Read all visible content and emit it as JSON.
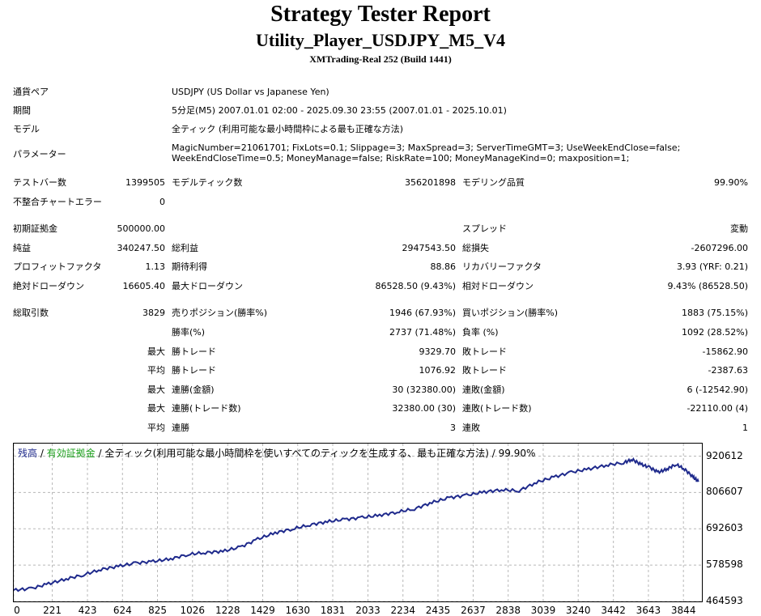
{
  "header": {
    "title": "Strategy Tester Report",
    "strategy": "Utility_Player_USDJPY_M5_V4",
    "server": "XMTrading-Real 252 (Build 1441)"
  },
  "info": {
    "pair_label": "通貨ペア",
    "pair_value": "USDJPY (US Dollar vs Japanese Yen)",
    "period_label": "期間",
    "period_value": "5分足(M5) 2007.01.01 02:00 - 2025.09.30 23:55 (2007.01.01 - 2025.10.01)",
    "model_label": "モデル",
    "model_value": "全ティック (利用可能な最小時間枠による最も正確な方法)",
    "params_label": "パラメーター",
    "params_line1": "MagicNumber=21061701; FixLots=0.1; Slippage=3; MaxSpread=3; ServerTimeGMT=3; UseWeekEndClose=false;",
    "params_line2": "WeekEndCloseTime=0.5; MoneyManage=false; RiskRate=100; MoneyManageKind=0; maxposition=1;"
  },
  "stats": {
    "bars_label": "テストバー数",
    "bars_value": "1399505",
    "ticks_label": "モデルティック数",
    "ticks_value": "356201898",
    "quality_label": "モデリング品質",
    "quality_value": "99.90%",
    "mismatch_label": "不整合チャートエラー",
    "mismatch_value": "0",
    "deposit_label": "初期証拠金",
    "deposit_value": "500000.00",
    "spread_label": "スプレッド",
    "spread_value": "変動",
    "net_label": "純益",
    "net_value": "340247.50",
    "gross_profit_label": "総利益",
    "gross_profit_value": "2947543.50",
    "gross_loss_label": "総損失",
    "gross_loss_value": "-2607296.00",
    "pf_label": "プロフィットファクタ",
    "pf_value": "1.13",
    "payoff_label": "期待利得",
    "payoff_value": "88.86",
    "recovery_label": "リカバリーファクタ",
    "recovery_value": "3.93 (YRF: 0.21)",
    "abs_dd_label": "絶対ドローダウン",
    "abs_dd_value": "16605.40",
    "max_dd_label": "最大ドローダウン",
    "max_dd_value": "86528.50 (9.43%)",
    "rel_dd_label": "相対ドローダウン",
    "rel_dd_value": "9.43% (86528.50)",
    "trades_label": "総取引数",
    "trades_value": "3829",
    "short_label": "売りポジション(勝率%)",
    "short_value": "1946 (67.93%)",
    "long_label": "買いポジション(勝率%)",
    "long_value": "1883 (75.15%)",
    "winrate_label": "勝率(%)",
    "winrate_value": "2737 (71.48%)",
    "lossrate_label": "負率 (%)",
    "lossrate_value": "1092 (28.52%)",
    "max_label": "最大",
    "avg_label": "平均",
    "largest_win_label": "勝トレード",
    "largest_win_value": "9329.70",
    "largest_loss_label": "敗トレード",
    "largest_loss_value": "-15862.90",
    "avg_win_label": "勝トレード",
    "avg_win_value": "1076.92",
    "avg_loss_label": "敗トレード",
    "avg_loss_value": "-2387.63",
    "consec_win_amt_label": "連勝(金額)",
    "consec_win_amt_value": "30 (32380.00)",
    "consec_loss_amt_label": "連敗(金額)",
    "consec_loss_amt_value": "6 (-12542.90)",
    "consec_win_trd_label": "連勝(トレード数)",
    "consec_win_trd_value": "32380.00 (30)",
    "consec_loss_trd_label": "連敗(トレード数)",
    "consec_loss_trd_value": "-22110.00 (4)",
    "avg_consec_win_label": "連勝",
    "avg_consec_win_value": "3",
    "avg_consec_loss_label": "連敗",
    "avg_consec_loss_value": "1"
  },
  "chart_caption": {
    "balance": "残高",
    "sep1": " / ",
    "equity": "有効証拠金",
    "rest": " / 全ティック(利用可能な最小時間枠を使いすべてのティックを生成する、最も正確な方法) / 99.90%"
  },
  "colors": {
    "balance": "#1f2a8c",
    "equity": "#1aa01a",
    "grid": "#b8b8b8"
  },
  "chart_data": {
    "type": "line",
    "title": "",
    "xlabel": "",
    "ylabel": "",
    "xlim": [
      0,
      3950
    ],
    "ylim": [
      464593,
      960000
    ],
    "x_ticks": [
      0,
      221,
      423,
      624,
      825,
      1026,
      1228,
      1429,
      1630,
      1831,
      2033,
      2234,
      2435,
      2637,
      2838,
      3039,
      3240,
      3442,
      3643,
      3844
    ],
    "y_ticks": [
      464593,
      578598,
      692603,
      806607,
      920612
    ],
    "grid": true,
    "series": [
      {
        "name": "残高",
        "x": [
          0,
          100,
          200,
          300,
          400,
          500,
          600,
          700,
          800,
          900,
          1000,
          1100,
          1200,
          1300,
          1400,
          1500,
          1600,
          1700,
          1800,
          1900,
          2000,
          2100,
          2200,
          2300,
          2400,
          2500,
          2600,
          2700,
          2800,
          2900,
          3000,
          3100,
          3200,
          3300,
          3400,
          3500,
          3550,
          3600,
          3650,
          3700,
          3750,
          3800,
          3850,
          3900,
          3930
        ],
        "y": [
          500000,
          505000,
          520000,
          535000,
          548000,
          565000,
          575000,
          585000,
          590000,
          598000,
          612000,
          618000,
          622000,
          635000,
          660000,
          680000,
          692000,
          705000,
          715000,
          722000,
          728000,
          735000,
          745000,
          755000,
          775000,
          790000,
          798000,
          808000,
          815000,
          812000,
          838000,
          855000,
          870000,
          880000,
          892000,
          900000,
          910000,
          895000,
          885000,
          870000,
          880000,
          895000,
          880000,
          855000,
          840000
        ]
      }
    ]
  }
}
